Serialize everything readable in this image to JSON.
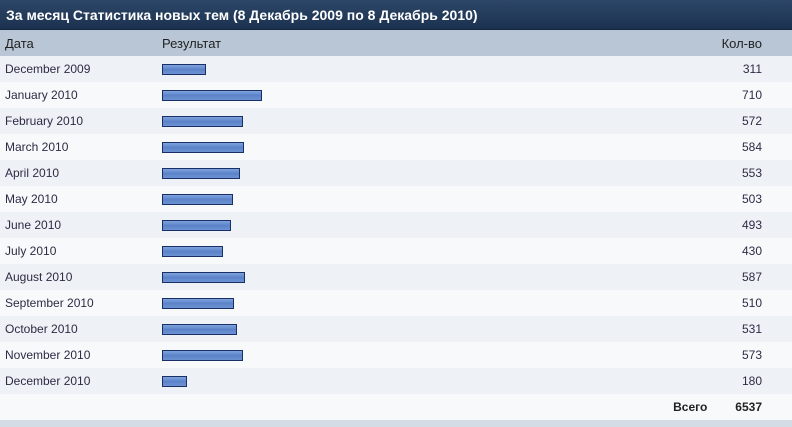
{
  "title": "За месяц Статистика новых тем (8 Декабрь 2009 по 8 Декабрь 2010)",
  "columns": {
    "date": "Дата",
    "result": "Результат",
    "count": "Кол-во"
  },
  "bar_color": "#5b82c8",
  "max_value": 710,
  "rows": [
    {
      "date": "December 2009",
      "count": 311
    },
    {
      "date": "January 2010",
      "count": 710
    },
    {
      "date": "February 2010",
      "count": 572
    },
    {
      "date": "March 2010",
      "count": 584
    },
    {
      "date": "April 2010",
      "count": 553
    },
    {
      "date": "May 2010",
      "count": 503
    },
    {
      "date": "June 2010",
      "count": 493
    },
    {
      "date": "July 2010",
      "count": 430
    },
    {
      "date": "August 2010",
      "count": 587
    },
    {
      "date": "September 2010",
      "count": 510
    },
    {
      "date": "October 2010",
      "count": 531
    },
    {
      "date": "November 2010",
      "count": 573
    },
    {
      "date": "December 2010",
      "count": 180
    }
  ],
  "total": {
    "label": "Всего",
    "value": "6537"
  }
}
